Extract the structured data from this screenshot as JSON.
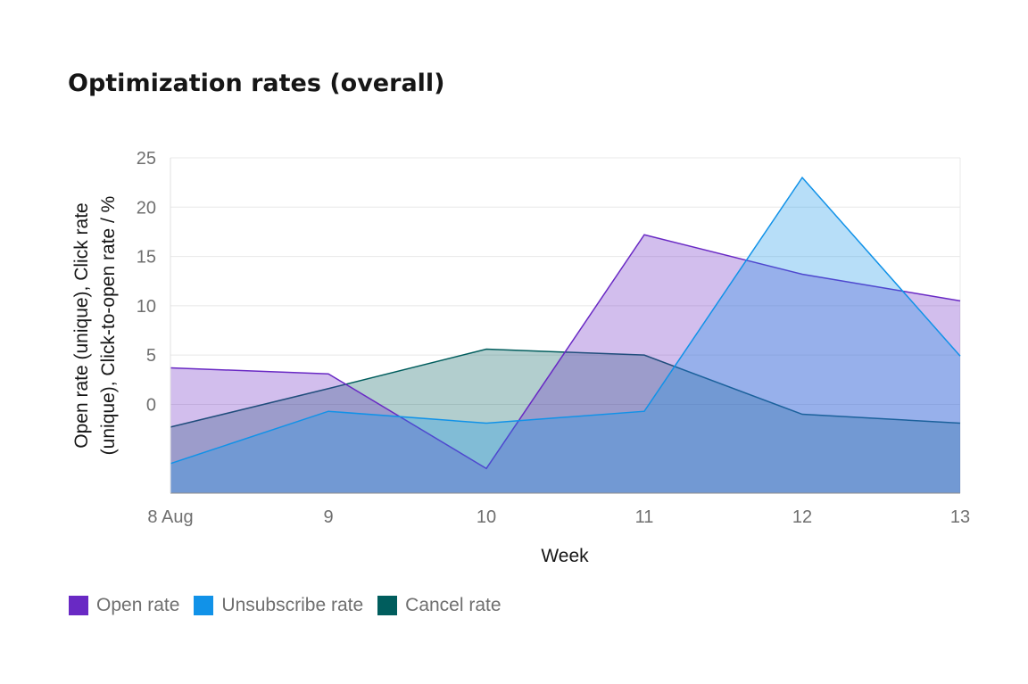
{
  "chart_data": {
    "type": "area",
    "title": "Optimization rates (overall)",
    "xlabel": "Week",
    "ylabel_lines": [
      "Open rate (unique), Click rate",
      "(unique), Click-to-open rate / %"
    ],
    "x_ticks": [
      "8 Aug",
      "9",
      "10",
      "11",
      "12",
      "13"
    ],
    "y_ticks": [
      0,
      5,
      10,
      15,
      20,
      25
    ],
    "ylim": [
      -9,
      25
    ],
    "grid": true,
    "legend_position": "bottom-left",
    "series": [
      {
        "name": "Cancel rate",
        "color": "#005d5d",
        "values": [
          -2.3,
          1.6,
          5.6,
          5.0,
          -1.0,
          -1.9
        ]
      },
      {
        "name": "Open rate",
        "color": "#6929c4",
        "values": [
          3.7,
          3.1,
          -6.5,
          17.2,
          13.2,
          10.5
        ]
      },
      {
        "name": "Unsubscribe rate",
        "color": "#1192e8",
        "values": [
          -6.0,
          -0.7,
          -1.9,
          -0.7,
          23.0,
          4.9
        ]
      }
    ],
    "legend": [
      {
        "label": "Open rate",
        "color": "#6929c4"
      },
      {
        "label": "Unsubscribe rate",
        "color": "#1192e8"
      },
      {
        "label": "Cancel rate",
        "color": "#005d5d"
      }
    ]
  }
}
